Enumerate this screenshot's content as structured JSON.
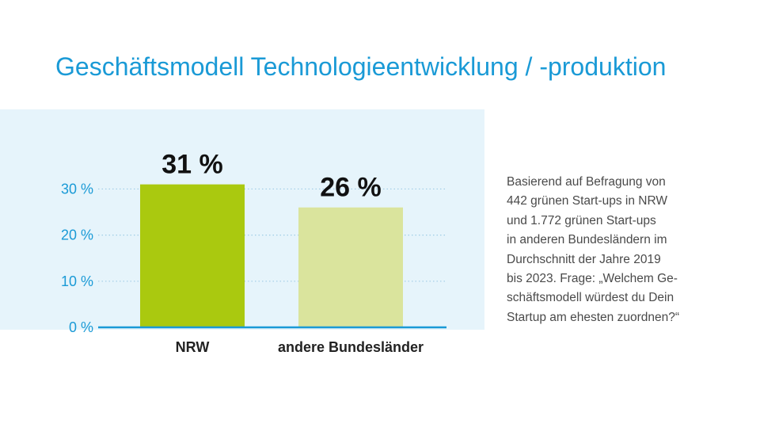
{
  "chart_data": {
    "type": "bar",
    "title": "Geschäftsmodell Technologieentwicklung / -produktion",
    "categories": [
      "NRW",
      "andere Bundesländer"
    ],
    "values": [
      31,
      26
    ],
    "value_labels": [
      "31 %",
      "26 %"
    ],
    "colors": [
      "#aac90f",
      "#dae49d"
    ],
    "yticks": [
      0,
      10,
      20,
      30
    ],
    "ytick_labels": [
      "0 %",
      "10 %",
      "20 %",
      "30 %"
    ],
    "ylim": [
      0,
      33
    ],
    "grid": true,
    "xlabel": "",
    "ylabel": ""
  },
  "note": {
    "lines": [
      "Basierend auf Befragung von",
      "442 grünen Start-ups in NRW",
      "und 1.772 grünen Start-ups",
      "in anderen Bundesländern im",
      "Durchschnitt der Jahre 2019",
      "bis 2023. Frage: „Welchem Ge-",
      "schäftsmodell würdest du Dein",
      "Startup am ehesten zuordnen?“"
    ]
  },
  "colors": {
    "accent": "#1a9ad6",
    "chart_background": "#e6f4fb"
  }
}
